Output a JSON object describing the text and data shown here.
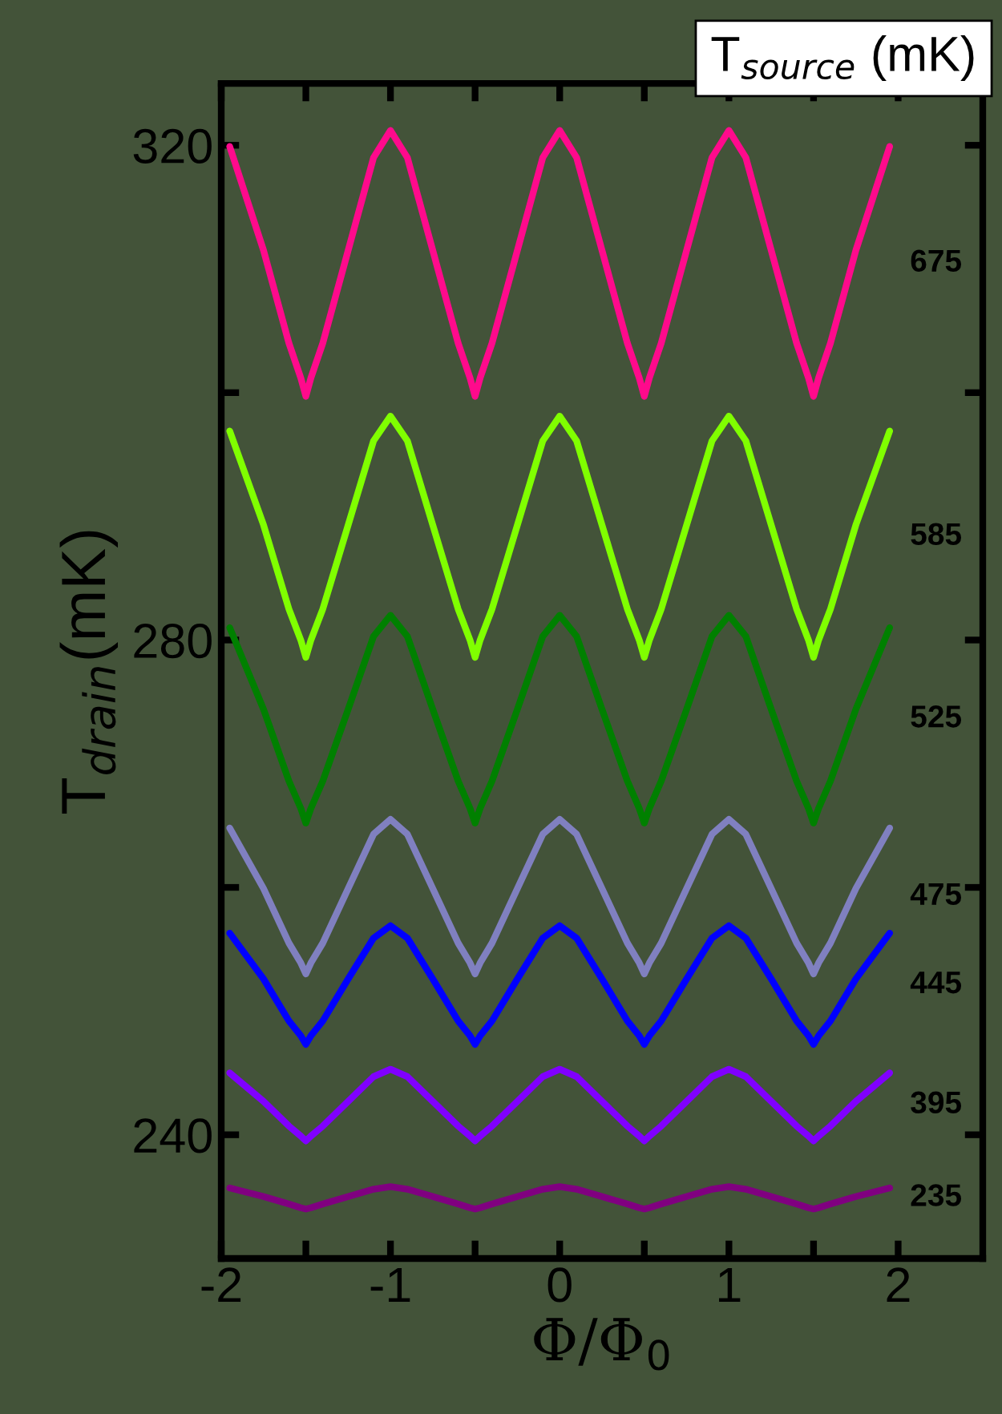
{
  "chart_data": {
    "type": "line",
    "xlabel": "Φ/Φ$_{0}$",
    "ylabel": "T$_{drain}$(mK)",
    "legend_title": "T$_{source}$ (mK)",
    "grid": false,
    "marker": "none",
    "line_style": "solid",
    "xlim": [
      -2,
      2.5
    ],
    "ylim": [
      230,
      325
    ],
    "xticks": [
      -2,
      {
        "value": -1.5,
        "label": null
      },
      -1,
      {
        "value": -0.5,
        "label": null
      },
      0,
      {
        "value": 0.5,
        "label": null
      },
      1,
      {
        "value": 1.5,
        "label": null
      },
      2
    ],
    "yticks": [
      240,
      {
        "value": 260,
        "label": null
      },
      280,
      {
        "value": 300,
        "label": null
      },
      320
    ],
    "x": [
      -1.95,
      -1.75,
      -1.6,
      -1.53,
      -1.5,
      -1.47,
      -1.4,
      -1.25,
      -1.1,
      -1,
      -0.9,
      -0.75,
      -0.6,
      -0.53,
      -0.5,
      -0.47,
      -0.4,
      -0.25,
      -0.1,
      0,
      0.1,
      0.25,
      0.4,
      0.47,
      0.5,
      0.53,
      0.6,
      0.75,
      0.9,
      1,
      1.1,
      1.25,
      1.4,
      1.47,
      1.5,
      1.53,
      1.6,
      1.75,
      1.95
    ],
    "series": [
      {
        "name": "675",
        "color": "#ff0a8c",
        "values": [
          319.9,
          311.5,
          304.0,
          301.2,
          299.7,
          301.2,
          304.0,
          311.5,
          319.0,
          321.2,
          319.0,
          311.5,
          304.0,
          301.2,
          299.7,
          301.2,
          304.0,
          311.5,
          319.0,
          321.2,
          319.0,
          311.5,
          304.0,
          301.2,
          299.7,
          301.2,
          304.0,
          311.5,
          319.0,
          321.2,
          319.0,
          311.5,
          304.0,
          301.2,
          299.7,
          301.2,
          304.0,
          311.5,
          319.9
        ]
      },
      {
        "name": "585",
        "color": "#80ff00",
        "values": [
          296.9,
          289.3,
          282.5,
          280.0,
          278.6,
          280.0,
          282.5,
          289.3,
          296.1,
          298.1,
          296.1,
          289.3,
          282.5,
          280.0,
          278.6,
          280.0,
          282.5,
          289.3,
          296.1,
          298.1,
          296.1,
          289.3,
          282.5,
          280.0,
          278.6,
          280.0,
          282.5,
          289.3,
          296.1,
          298.1,
          296.1,
          289.3,
          282.5,
          280.0,
          278.6,
          280.0,
          282.5,
          289.3,
          296.9
        ]
      },
      {
        "name": "525",
        "color": "#008000",
        "values": [
          281.0,
          274.4,
          268.6,
          266.4,
          265.2,
          266.4,
          268.6,
          274.4,
          280.3,
          282,
          280.3,
          274.4,
          268.6,
          266.4,
          265.2,
          266.4,
          268.6,
          274.4,
          280.3,
          282,
          280.3,
          274.4,
          268.6,
          266.4,
          265.2,
          266.4,
          268.6,
          274.4,
          280.3,
          282,
          280.3,
          274.4,
          268.6,
          266.4,
          265.2,
          266.4,
          268.6,
          274.4,
          281.0
        ]
      },
      {
        "name": "475",
        "color": "#8080c0",
        "values": [
          264.8,
          259.9,
          255.5,
          253.9,
          253.0,
          253.9,
          255.5,
          259.9,
          264.3,
          265.5,
          264.3,
          259.9,
          255.5,
          253.9,
          253.0,
          253.9,
          255.5,
          259.9,
          264.3,
          265.5,
          264.3,
          259.9,
          255.5,
          253.9,
          253.0,
          253.9,
          255.5,
          259.9,
          264.3,
          265.5,
          264.3,
          259.9,
          255.5,
          253.9,
          253.0,
          253.9,
          255.5,
          259.9,
          264.8
        ]
      },
      {
        "name": "445",
        "color": "#0000ff",
        "values": [
          256.3,
          252.6,
          249.2,
          248.0,
          247.3,
          248.0,
          249.2,
          252.6,
          255.9,
          256.9,
          255.9,
          252.6,
          249.2,
          248.0,
          247.3,
          248.0,
          249.2,
          252.6,
          255.9,
          256.9,
          255.9,
          252.6,
          249.2,
          248.0,
          247.3,
          248.0,
          249.2,
          252.6,
          255.9,
          256.9,
          255.9,
          252.6,
          249.2,
          248.0,
          247.3,
          248.0,
          249.2,
          252.6,
          256.3
        ]
      },
      {
        "name": "395",
        "color": "#8000ff",
        "values": [
          245.0,
          242.7,
          240.7,
          239.9,
          239.5,
          239.9,
          240.7,
          242.7,
          244.7,
          245.3,
          244.7,
          242.7,
          240.7,
          239.9,
          239.5,
          239.9,
          240.7,
          242.7,
          244.7,
          245.3,
          244.7,
          242.7,
          240.7,
          239.9,
          239.5,
          239.9,
          240.7,
          242.7,
          244.7,
          245.3,
          244.7,
          242.7,
          240.7,
          239.9,
          239.5,
          239.9,
          240.7,
          242.7,
          245.0
        ]
      },
      {
        "name": "235",
        "color": "#800080",
        "values": [
          235.7,
          235.0,
          234.4,
          234.1,
          234.0,
          234.1,
          234.4,
          235.0,
          235.6,
          235.8,
          235.6,
          235.0,
          234.4,
          234.1,
          234.0,
          234.1,
          234.4,
          235.0,
          235.6,
          235.8,
          235.6,
          235.0,
          234.4,
          234.1,
          234.0,
          234.1,
          234.4,
          235.0,
          235.6,
          235.8,
          235.6,
          235.0,
          234.4,
          234.1,
          234.0,
          234.1,
          234.4,
          235.0,
          235.7
        ]
      }
    ]
  }
}
